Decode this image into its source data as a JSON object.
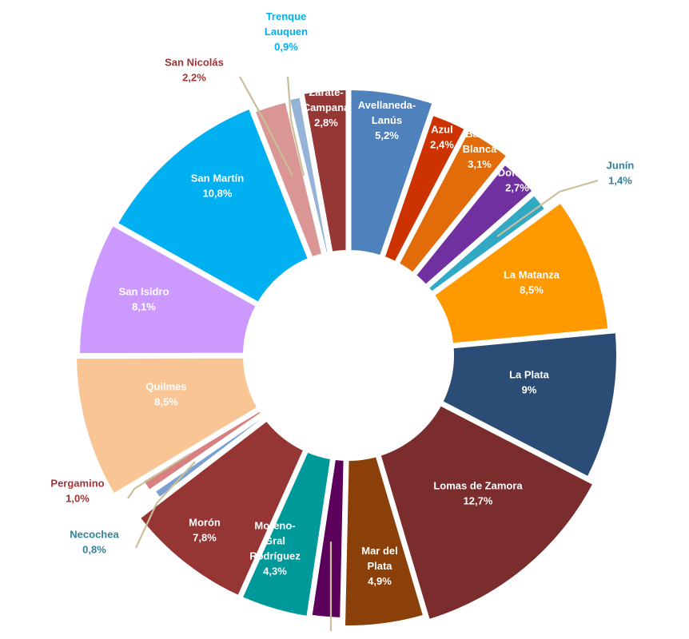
{
  "chart_data": {
    "type": "donut",
    "title": "",
    "unit": "%",
    "slices": [
      {
        "name": "Avellaneda-Lanús",
        "value_label": "5,2%",
        "value": 5.2,
        "color": "#4F81BD",
        "label_color": "#ffffff"
      },
      {
        "name": "Azul",
        "value_label": "2,4%",
        "value": 2.4,
        "color": "#CC3300",
        "label_color": "#ffffff"
      },
      {
        "name": "Bahía Blanca",
        "value_label": "3,1%",
        "value": 3.1,
        "color": "#E36C0A",
        "label_color": "#ffffff"
      },
      {
        "name": "Dolores",
        "value_label": "2,7%",
        "value": 2.7,
        "color": "#7030A0",
        "label_color": "#ffffff"
      },
      {
        "name": "Junín",
        "value_label": "1,4%",
        "value": 1.4,
        "color": "#31A8C4",
        "label_color": "#31849B"
      },
      {
        "name": "La Matanza",
        "value_label": "8,5%",
        "value": 8.5,
        "color": "#FF9900",
        "label_color": "#ffffff"
      },
      {
        "name": "La Plata",
        "value_label": "9%",
        "value": 9.0,
        "color": "#2B4C74",
        "label_color": "#ffffff"
      },
      {
        "name": "Lomas de Zamora",
        "value_label": "12,7%",
        "value": 12.7,
        "color": "#7B2C2C",
        "label_color": "#ffffff"
      },
      {
        "name": "Mar del Plata",
        "value_label": "4,9%",
        "value": 4.9,
        "color": "#8B3F09",
        "label_color": "#ffffff"
      },
      {
        "name": "",
        "value_label": "",
        "value": 2.0,
        "color": "#5B005B",
        "label_color": "#ffffff"
      },
      {
        "name": "Moreno-Gral Rodríguez",
        "value_label": "4,3%",
        "value": 4.3,
        "color": "#009999",
        "label_color": "#ffffff"
      },
      {
        "name": "Morón",
        "value_label": "7,8%",
        "value": 7.8,
        "color": "#963634",
        "label_color": "#ffffff"
      },
      {
        "name": "Necochea",
        "value_label": "0,8%",
        "value": 0.8,
        "color": "#7BA0D4",
        "label_color": "#31849B"
      },
      {
        "name": "Pergamino",
        "value_label": "1,0%",
        "value": 1.0,
        "color": "#D88080",
        "label_color": "#A0343A"
      },
      {
        "name": "Quilmes",
        "value_label": "8,5%",
        "value": 8.5,
        "color": "#F9C595",
        "label_color": "#ffffff"
      },
      {
        "name": "San Isidro",
        "value_label": "8,1%",
        "value": 8.1,
        "color": "#CC99FF",
        "label_color": "#ffffff"
      },
      {
        "name": "San Martín",
        "value_label": "10,8%",
        "value": 10.8,
        "color": "#00B0F0",
        "label_color": "#ffffff"
      },
      {
        "name": "San Nicolás",
        "value_label": "2,2%",
        "value": 2.2,
        "color": "#DA9694",
        "label_color": "#A0343A"
      },
      {
        "name": "Trenque Lauquen",
        "value_label": "0,9%",
        "value": 0.9,
        "color": "#95B3D7",
        "label_color": "#00B0F0"
      },
      {
        "name": "Zárate-Campana",
        "value_label": "2,8%",
        "value": 2.8,
        "color": "#953735",
        "label_color": "#ffffff"
      }
    ]
  }
}
